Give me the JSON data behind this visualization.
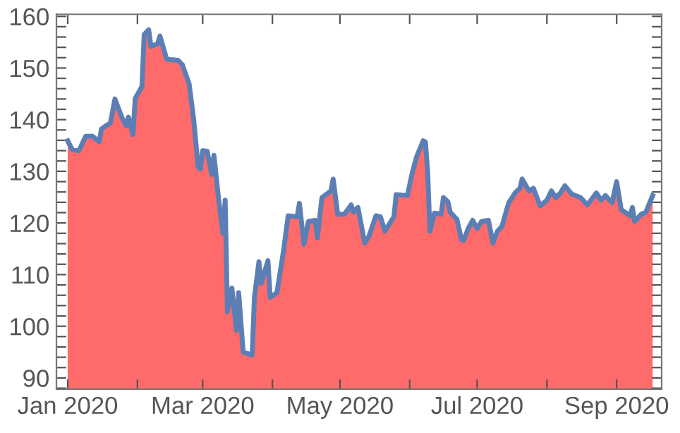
{
  "chart_data": {
    "type": "area",
    "series": [
      {
        "color": "#ff6b6b",
        "x": [
          "2020-01-01",
          "2020-01-03",
          "2020-01-06",
          "2020-01-09",
          "2020-01-12",
          "2020-01-15",
          "2020-01-16",
          "2020-01-20",
          "2020-01-22",
          "2020-01-25",
          "2020-01-27",
          "2020-01-28",
          "2020-01-30",
          "2020-01-31",
          "2020-02-03",
          "2020-02-04",
          "2020-02-06",
          "2020-02-07",
          "2020-02-10",
          "2020-02-11",
          "2020-02-14",
          "2020-02-19",
          "2020-02-21",
          "2020-02-24",
          "2020-02-26",
          "2020-02-28",
          "2020-02-29",
          "2020-03-01",
          "2020-03-03",
          "2020-03-05",
          "2020-03-06",
          "2020-03-08",
          "2020-03-10",
          "2020-03-11",
          "2020-03-12",
          "2020-03-14",
          "2020-03-16",
          "2020-03-17",
          "2020-03-19",
          "2020-03-23",
          "2020-03-24",
          "2020-03-26",
          "2020-03-27",
          "2020-03-30",
          "2020-03-31",
          "2020-04-03",
          "2020-04-06",
          "2020-04-08",
          "2020-04-12",
          "2020-04-13",
          "2020-04-15",
          "2020-04-17",
          "2020-04-20",
          "2020-04-21",
          "2020-04-23",
          "2020-04-27",
          "2020-04-28",
          "2020-04-30",
          "2020-05-03",
          "2020-05-06",
          "2020-05-07",
          "2020-05-09",
          "2020-05-12",
          "2020-05-14",
          "2020-05-17",
          "2020-05-19",
          "2020-05-21",
          "2020-05-25",
          "2020-05-26",
          "2020-05-31",
          "2020-06-02",
          "2020-06-04",
          "2020-06-07",
          "2020-06-08",
          "2020-06-09",
          "2020-06-10",
          "2020-06-12",
          "2020-06-15",
          "2020-06-16",
          "2020-06-18",
          "2020-06-19",
          "2020-06-22",
          "2020-06-24",
          "2020-06-25",
          "2020-06-27",
          "2020-06-29",
          "2020-07-01",
          "2020-07-03",
          "2020-07-06",
          "2020-07-08",
          "2020-07-10",
          "2020-07-12",
          "2020-07-15",
          "2020-07-18",
          "2020-07-20",
          "2020-07-21",
          "2020-07-24",
          "2020-07-26",
          "2020-07-29",
          "2020-08-01",
          "2020-08-03",
          "2020-08-05",
          "2020-08-07",
          "2020-08-09",
          "2020-08-12",
          "2020-08-16",
          "2020-08-19",
          "2020-08-23",
          "2020-08-25",
          "2020-08-27",
          "2020-08-30",
          "2020-09-01",
          "2020-09-03",
          "2020-09-07",
          "2020-09-08",
          "2020-09-09",
          "2020-09-12",
          "2020-09-14",
          "2020-09-17"
        ],
        "values": [
          135.9,
          134.2,
          134.0,
          136.8,
          136.8,
          135.7,
          138.2,
          139.4,
          144.0,
          140.5,
          138.8,
          140.5,
          137.1,
          144.1,
          146.4,
          156.5,
          157.4,
          154.2,
          154.7,
          156.2,
          151.7,
          151.5,
          150.6,
          146.9,
          140.0,
          130.8,
          130.4,
          134.0,
          133.9,
          129.4,
          133.1,
          124.9,
          118.0,
          124.4,
          102.8,
          107.4,
          99.2,
          106.5,
          95.0,
          94.4,
          105.6,
          112.5,
          108.3,
          112.7,
          105.6,
          106.5,
          114.8,
          121.4,
          121.2,
          123.8,
          115.9,
          120.3,
          120.5,
          117.1,
          124.9,
          126.2,
          128.5,
          121.7,
          121.7,
          123.5,
          122.1,
          123.0,
          116.1,
          117.5,
          121.4,
          121.2,
          118.4,
          121.2,
          125.5,
          125.3,
          129.4,
          132.7,
          135.9,
          135.7,
          129.9,
          118.4,
          121.9,
          121.7,
          124.9,
          124.1,
          122.1,
          120.7,
          116.8,
          116.6,
          118.9,
          120.5,
          118.9,
          120.3,
          120.5,
          116.1,
          118.4,
          119.3,
          123.9,
          125.9,
          126.7,
          128.5,
          126.2,
          126.7,
          123.3,
          124.4,
          126.2,
          124.9,
          125.8,
          127.2,
          125.6,
          124.9,
          123.5,
          125.8,
          124.4,
          125.3,
          123.9,
          128.0,
          122.6,
          121.4,
          123.0,
          120.3,
          121.7,
          122.1,
          125.3
        ]
      },
      {
        "type": "line",
        "color": "#5b7fb5",
        "x": [
          "2020-01-01",
          "2020-01-03",
          "2020-01-06",
          "2020-01-09",
          "2020-01-12",
          "2020-01-15",
          "2020-01-16",
          "2020-01-20",
          "2020-01-22",
          "2020-01-25",
          "2020-01-27",
          "2020-01-28",
          "2020-01-30",
          "2020-01-31",
          "2020-02-03",
          "2020-02-04",
          "2020-02-06",
          "2020-02-07",
          "2020-02-10",
          "2020-02-11",
          "2020-02-14",
          "2020-02-19",
          "2020-02-21",
          "2020-02-24",
          "2020-02-26",
          "2020-02-28",
          "2020-02-29",
          "2020-03-01",
          "2020-03-03",
          "2020-03-05",
          "2020-03-06",
          "2020-03-08",
          "2020-03-10",
          "2020-03-11",
          "2020-03-12",
          "2020-03-14",
          "2020-03-16",
          "2020-03-17",
          "2020-03-19",
          "2020-03-23",
          "2020-03-24",
          "2020-03-26",
          "2020-03-27",
          "2020-03-30",
          "2020-03-31",
          "2020-04-03",
          "2020-04-06",
          "2020-04-08",
          "2020-04-12",
          "2020-04-13",
          "2020-04-15",
          "2020-04-17",
          "2020-04-20",
          "2020-04-21",
          "2020-04-23",
          "2020-04-27",
          "2020-04-28",
          "2020-04-30",
          "2020-05-03",
          "2020-05-06",
          "2020-05-07",
          "2020-05-09",
          "2020-05-12",
          "2020-05-14",
          "2020-05-17",
          "2020-05-19",
          "2020-05-21",
          "2020-05-25",
          "2020-05-26",
          "2020-05-31",
          "2020-06-02",
          "2020-06-04",
          "2020-06-07",
          "2020-06-08",
          "2020-06-09",
          "2020-06-10",
          "2020-06-12",
          "2020-06-15",
          "2020-06-16",
          "2020-06-18",
          "2020-06-19",
          "2020-06-22",
          "2020-06-24",
          "2020-06-25",
          "2020-06-27",
          "2020-06-29",
          "2020-07-01",
          "2020-07-03",
          "2020-07-06",
          "2020-07-08",
          "2020-07-10",
          "2020-07-12",
          "2020-07-15",
          "2020-07-18",
          "2020-07-20",
          "2020-07-21",
          "2020-07-24",
          "2020-07-26",
          "2020-07-29",
          "2020-08-01",
          "2020-08-03",
          "2020-08-05",
          "2020-08-07",
          "2020-08-09",
          "2020-08-12",
          "2020-08-16",
          "2020-08-19",
          "2020-08-23",
          "2020-08-25",
          "2020-08-27",
          "2020-08-30",
          "2020-09-01",
          "2020-09-03",
          "2020-09-07",
          "2020-09-08",
          "2020-09-09",
          "2020-09-12",
          "2020-09-14",
          "2020-09-17"
        ],
        "values": [
          135.9,
          134.2,
          134.0,
          136.8,
          136.8,
          135.7,
          138.2,
          139.4,
          144.0,
          140.5,
          138.8,
          140.5,
          137.1,
          144.1,
          146.4,
          156.5,
          157.4,
          154.2,
          154.7,
          156.2,
          151.7,
          151.5,
          150.6,
          146.9,
          140.0,
          130.8,
          130.4,
          134.0,
          133.9,
          129.4,
          133.1,
          124.9,
          118.0,
          124.4,
          102.8,
          107.4,
          99.2,
          106.5,
          95.0,
          94.4,
          105.6,
          112.5,
          108.3,
          112.7,
          105.6,
          106.5,
          114.8,
          121.4,
          121.2,
          123.8,
          115.9,
          120.3,
          120.5,
          117.1,
          124.9,
          126.2,
          128.5,
          121.7,
          121.7,
          123.5,
          122.1,
          123.0,
          116.1,
          117.5,
          121.4,
          121.2,
          118.4,
          121.2,
          125.5,
          125.3,
          129.4,
          132.7,
          135.9,
          135.7,
          129.9,
          118.4,
          121.9,
          121.7,
          124.9,
          124.1,
          122.1,
          120.7,
          116.8,
          116.6,
          118.9,
          120.5,
          118.9,
          120.3,
          120.5,
          116.1,
          118.4,
          119.3,
          123.9,
          125.9,
          126.7,
          128.5,
          126.2,
          126.7,
          123.3,
          124.4,
          126.2,
          124.9,
          125.8,
          127.2,
          125.6,
          124.9,
          123.5,
          125.8,
          124.4,
          125.3,
          123.9,
          128.0,
          122.6,
          121.4,
          123.0,
          120.3,
          121.7,
          122.1,
          125.3
        ]
      }
    ],
    "xlim": [
      "2019-12-27",
      "2020-09-21"
    ],
    "xticks": [
      {
        "value": "2020-01-01",
        "label": "Jan 2020"
      },
      {
        "value": "2020-02-01",
        "label": null
      },
      {
        "value": "2020-03-01",
        "label": "Mar 2020"
      },
      {
        "value": "2020-04-01",
        "label": null
      },
      {
        "value": "2020-05-01",
        "label": "May 2020"
      },
      {
        "value": "2020-06-01",
        "label": null
      },
      {
        "value": "2020-07-01",
        "label": "Jul 2020"
      },
      {
        "value": "2020-08-01",
        "label": null
      },
      {
        "value": "2020-09-01",
        "label": "Sep 2020"
      }
    ],
    "ylim": [
      87.8,
      160.4
    ],
    "yticks": [
      {
        "value": 88,
        "label": null
      },
      90,
      {
        "value": 92,
        "label": null
      },
      {
        "value": 94,
        "label": null
      },
      {
        "value": 96,
        "label": null
      },
      {
        "value": 98,
        "label": null
      },
      100,
      {
        "value": 102,
        "label": null
      },
      {
        "value": 104,
        "label": null
      },
      {
        "value": 106,
        "label": null
      },
      {
        "value": 108,
        "label": null
      },
      110,
      {
        "value": 112,
        "label": null
      },
      {
        "value": 114,
        "label": null
      },
      {
        "value": 116,
        "label": null
      },
      {
        "value": 118,
        "label": null
      },
      120,
      {
        "value": 122,
        "label": null
      },
      {
        "value": 124,
        "label": null
      },
      {
        "value": 126,
        "label": null
      },
      {
        "value": 128,
        "label": null
      },
      130,
      {
        "value": 132,
        "label": null
      },
      {
        "value": 134,
        "label": null
      },
      {
        "value": 136,
        "label": null
      },
      {
        "value": 138,
        "label": null
      },
      140,
      {
        "value": 142,
        "label": null
      },
      {
        "value": 144,
        "label": null
      },
      {
        "value": 146,
        "label": null
      },
      {
        "value": 148,
        "label": null
      },
      150,
      {
        "value": 152,
        "label": null
      },
      {
        "value": 154,
        "label": null
      },
      {
        "value": 156,
        "label": null
      },
      {
        "value": 158,
        "label": null
      },
      160
    ],
    "grid": false,
    "legend": false
  }
}
